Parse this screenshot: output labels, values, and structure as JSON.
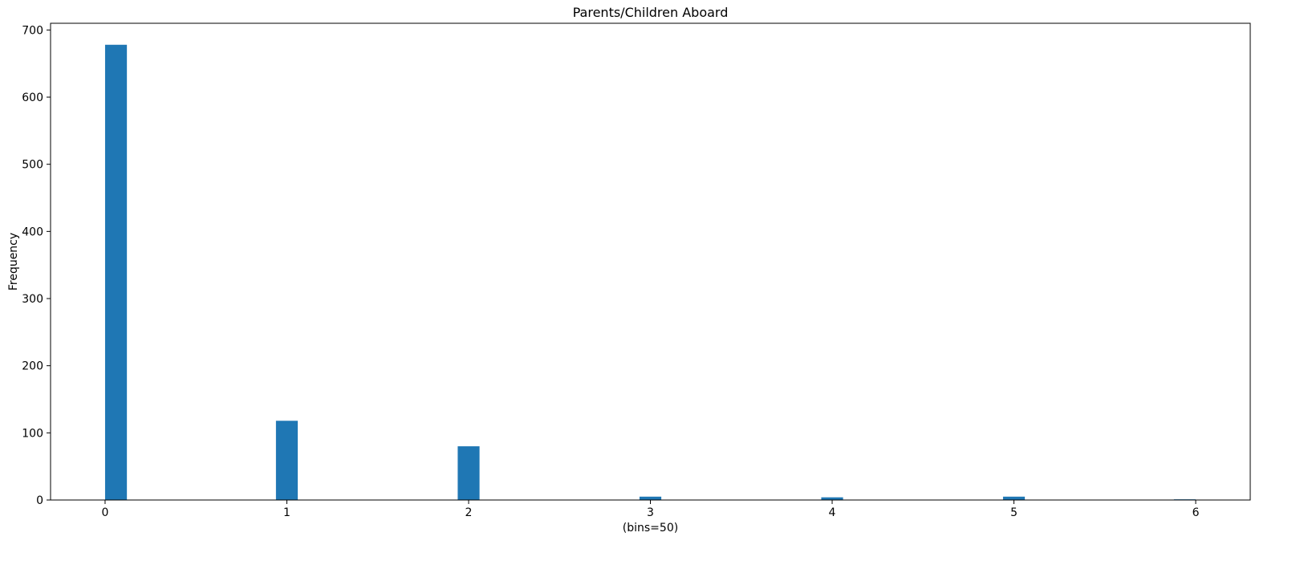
{
  "chart_data": {
    "type": "bar",
    "subtype": "histogram",
    "title": "Parents/Children Aboard",
    "xlabel": "(bins=50)",
    "ylabel": "Frequency",
    "bins": 50,
    "xlim": [
      -0.3,
      6.3
    ],
    "ylim": [
      0,
      710
    ],
    "grid": false,
    "bar_color": "#1f77b4",
    "x_ticks": [
      "0",
      "1",
      "2",
      "3",
      "4",
      "5",
      "6"
    ],
    "y_ticks": [
      "0",
      "100",
      "200",
      "300",
      "400",
      "500",
      "600",
      "700"
    ],
    "series": [
      {
        "x": [
          0,
          1,
          2,
          3,
          4,
          5,
          6
        ],
        "values": [
          678,
          118,
          80,
          5,
          4,
          5,
          1
        ]
      }
    ]
  }
}
